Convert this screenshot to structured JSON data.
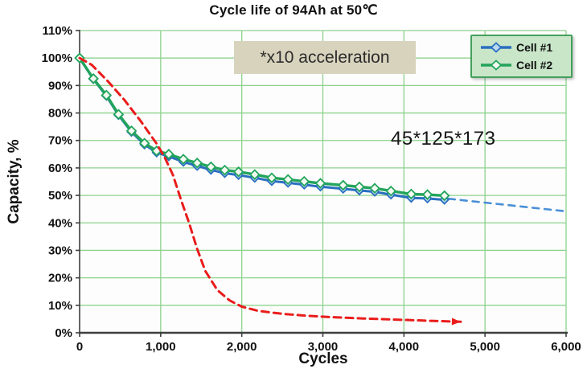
{
  "chart_data": {
    "type": "line",
    "title": "Cycle life of 94Ah at 50℃",
    "xlabel": "Cycles",
    "ylabel": "Capacity, %",
    "xlim": [
      0,
      6000
    ],
    "ylim": [
      0,
      110
    ],
    "grid": true,
    "colors": {
      "grid": "#8ed28e",
      "axis": "#3f3f3f",
      "legend_bg": "#c9e6c9",
      "legend_border": "#44a05c",
      "annotation_bg": "#d8d3bd"
    },
    "x_ticks": [
      [
        0,
        "0"
      ],
      [
        1000,
        "1,000"
      ],
      [
        2000,
        "2,000"
      ],
      [
        3000,
        "3,000"
      ],
      [
        4000,
        "4,000"
      ],
      [
        5000,
        "5,000"
      ],
      [
        6000,
        "6,000"
      ]
    ],
    "y_ticks": [
      [
        0,
        "0%"
      ],
      [
        10,
        "10%"
      ],
      [
        20,
        "20%"
      ],
      [
        30,
        "30%"
      ],
      [
        40,
        "40%"
      ],
      [
        50,
        "50%"
      ],
      [
        60,
        "60%"
      ],
      [
        70,
        "70%"
      ],
      [
        80,
        "80%"
      ],
      [
        90,
        "90%"
      ],
      [
        100,
        "100%"
      ],
      [
        110,
        "110%"
      ]
    ],
    "legend": {
      "position": "top-right"
    },
    "series": [
      {
        "name": "Cell #1",
        "color": "#2a6fc0",
        "marker": "diamond",
        "marker_fill": "#b8d9f0",
        "in_legend": true,
        "points": [
          [
            0,
            100
          ],
          [
            170,
            92.3
          ],
          [
            330,
            86.2
          ],
          [
            480,
            79.2
          ],
          [
            640,
            73.1
          ],
          [
            800,
            68.5
          ],
          [
            950,
            65.6
          ],
          [
            1100,
            64.2
          ],
          [
            1280,
            62.2
          ],
          [
            1450,
            60.7
          ],
          [
            1620,
            59.3
          ],
          [
            1790,
            58.1
          ],
          [
            1960,
            57.4
          ],
          [
            2160,
            56.4
          ],
          [
            2370,
            55.2
          ],
          [
            2570,
            54.6
          ],
          [
            2770,
            53.9
          ],
          [
            2970,
            53.2
          ],
          [
            3250,
            52.4
          ],
          [
            3450,
            51.8
          ],
          [
            3640,
            51.3
          ],
          [
            3840,
            50.3
          ],
          [
            4090,
            49.1
          ],
          [
            4290,
            48.9
          ],
          [
            4500,
            48.4
          ]
        ]
      },
      {
        "name": "Cell #2",
        "color": "#22a45c",
        "marker": "diamond",
        "marker_fill": "#f4faf2",
        "in_legend": true,
        "points": [
          [
            0,
            100
          ],
          [
            170,
            92.5
          ],
          [
            330,
            86.5
          ],
          [
            480,
            79.5
          ],
          [
            640,
            73.5
          ],
          [
            800,
            69.0
          ],
          [
            950,
            66.2
          ],
          [
            1100,
            65.0
          ],
          [
            1280,
            63.2
          ],
          [
            1450,
            61.8
          ],
          [
            1620,
            60.4
          ],
          [
            1790,
            59.2
          ],
          [
            1960,
            58.6
          ],
          [
            2160,
            57.6
          ],
          [
            2370,
            56.4
          ],
          [
            2570,
            55.8
          ],
          [
            2770,
            55.1
          ],
          [
            2970,
            54.4
          ],
          [
            3250,
            53.7
          ],
          [
            3450,
            53.1
          ],
          [
            3640,
            52.6
          ],
          [
            3840,
            51.6
          ],
          [
            4090,
            50.5
          ],
          [
            4290,
            50.3
          ],
          [
            4500,
            49.9
          ]
        ]
      },
      {
        "name": "Cell #1 extrapolation",
        "color": "#4a8fd6",
        "style": "dashed",
        "in_legend": false,
        "points": [
          [
            4550,
            48.8
          ],
          [
            6000,
            44.2
          ]
        ]
      },
      {
        "name": "x10 accelerated test",
        "color": "#ea1c1c",
        "style": "dashed",
        "arrow_end": true,
        "in_legend": false,
        "points": [
          [
            0,
            100
          ],
          [
            150,
            97.5
          ],
          [
            350,
            91.5
          ],
          [
            550,
            84.8
          ],
          [
            750,
            77.2
          ],
          [
            950,
            68.8
          ],
          [
            1050,
            63.8
          ],
          [
            1150,
            57.5
          ],
          [
            1250,
            48.5
          ],
          [
            1350,
            40.0
          ],
          [
            1450,
            30.5
          ],
          [
            1550,
            22.5
          ],
          [
            1700,
            15.5
          ],
          [
            1850,
            11.8
          ],
          [
            2000,
            9.5
          ],
          [
            2200,
            8.0
          ],
          [
            2500,
            6.9
          ],
          [
            2800,
            6.2
          ],
          [
            3100,
            5.7
          ],
          [
            3500,
            5.2
          ],
          [
            3900,
            4.8
          ],
          [
            4300,
            4.4
          ],
          [
            4700,
            4.0
          ]
        ]
      }
    ],
    "annotations": [
      {
        "text": "*x10 acceleration",
        "box": true
      },
      {
        "text": "45*125*173",
        "box": false
      }
    ]
  }
}
